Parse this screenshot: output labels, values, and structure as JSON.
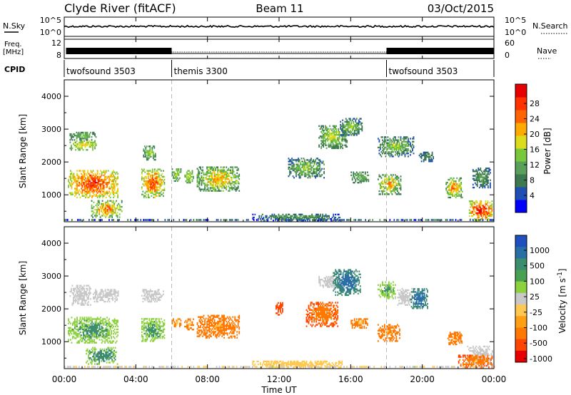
{
  "header": {
    "station": "Clyde River (fitACF)",
    "beam": "Beam 11",
    "date": "03/Oct/2015"
  },
  "summary_panels": {
    "nsky_label": "N.Sky",
    "nsearch_label": "N.Search",
    "nsky_ticks": [
      "10^5",
      "10^0"
    ],
    "nsearch_ticks": [
      "10^5",
      "10^0"
    ],
    "freq_label_1": "Freq.",
    "freq_label_2": "[MHz]",
    "freq_ticks": [
      "12",
      "8"
    ],
    "nave_label": "Nave",
    "nave_ticks": [
      "60",
      "0"
    ],
    "cpid_label": "CPID",
    "cpid_segments": [
      {
        "name": "twofsound 3503",
        "start_h": 0,
        "end_h": 6
      },
      {
        "name": "themis 3300",
        "start_h": 6,
        "end_h": 18
      },
      {
        "name": "twofsound 3503",
        "start_h": 18,
        "end_h": 24
      }
    ]
  },
  "x_axis": {
    "title": "Time UT",
    "ticks": [
      "00:00",
      "04:00",
      "08:00",
      "12:00",
      "16:00",
      "20:00",
      "00:00"
    ],
    "range_h": [
      0,
      24
    ]
  },
  "power_colorbar": {
    "label": "Power [dB]",
    "ticks": [
      "28",
      "24",
      "20",
      "16",
      "12",
      "8",
      "4"
    ],
    "colors": [
      "#0000ff",
      "#1e50b4",
      "#3c7850",
      "#5aa05a",
      "#78c83c",
      "#dcdc1e",
      "#ffaa00",
      "#ff6400",
      "#ff3200",
      "#e60000"
    ]
  },
  "velocity_colorbar": {
    "label": "Velocity [m s^-1]",
    "ticks": [
      "1000",
      "500",
      "100",
      "25",
      "-25",
      "-100",
      "-500",
      "-1000"
    ],
    "colors": [
      "#2050c0",
      "#2a6ea8",
      "#3c8c6e",
      "#4aa052",
      "#8cd23c",
      "#c8c8c8",
      "#ffc850",
      "#ffa014",
      "#ff7800",
      "#ff4600",
      "#e60000"
    ]
  },
  "chart_data": [
    {
      "type": "heatmap",
      "panel": "power",
      "ylabel": "Slant Range [km]",
      "yticks": [
        "1000",
        "2000",
        "3000",
        "4000"
      ],
      "ylim_km": [
        180,
        4500
      ],
      "xlim_h": [
        0,
        24
      ],
      "blobs": [
        {
          "t0": 0.2,
          "t1": 3.0,
          "r0": 900,
          "r1": 1750,
          "v0": 14,
          "v1": 30
        },
        {
          "t0": 0.3,
          "t1": 1.8,
          "r0": 2350,
          "r1": 2650,
          "v0": 12,
          "v1": 22
        },
        {
          "t0": 0.3,
          "t1": 1.8,
          "r0": 2650,
          "r1": 2900,
          "v0": 8,
          "v1": 16
        },
        {
          "t0": 1.5,
          "t1": 3.2,
          "r0": 300,
          "r1": 800,
          "v0": 10,
          "v1": 26
        },
        {
          "t0": 4.3,
          "t1": 5.6,
          "r0": 900,
          "r1": 1800,
          "v0": 12,
          "v1": 28
        },
        {
          "t0": 4.4,
          "t1": 5.1,
          "r0": 2050,
          "r1": 2500,
          "v0": 8,
          "v1": 18
        },
        {
          "t0": 6.0,
          "t1": 6.5,
          "r0": 1400,
          "r1": 1800,
          "v0": 10,
          "v1": 18
        },
        {
          "t0": 6.7,
          "t1": 7.2,
          "r0": 1350,
          "r1": 1750,
          "v0": 10,
          "v1": 20
        },
        {
          "t0": 7.4,
          "t1": 9.8,
          "r0": 1100,
          "r1": 1850,
          "v0": 8,
          "v1": 24
        },
        {
          "t0": 10.5,
          "t1": 15.5,
          "r0": 200,
          "r1": 420,
          "v0": 4,
          "v1": 14
        },
        {
          "t0": 12.5,
          "t1": 14.5,
          "r0": 1500,
          "r1": 2100,
          "v0": 6,
          "v1": 18
        },
        {
          "t0": 14.2,
          "t1": 15.8,
          "r0": 2400,
          "r1": 3100,
          "v0": 8,
          "v1": 20
        },
        {
          "t0": 15.4,
          "t1": 16.6,
          "r0": 2800,
          "r1": 3300,
          "v0": 6,
          "v1": 18
        },
        {
          "t0": 16.0,
          "t1": 17.0,
          "r0": 1350,
          "r1": 1700,
          "v0": 8,
          "v1": 16
        },
        {
          "t0": 17.5,
          "t1": 18.8,
          "r0": 1000,
          "r1": 1600,
          "v0": 8,
          "v1": 24
        },
        {
          "t0": 17.5,
          "t1": 19.5,
          "r0": 2150,
          "r1": 2750,
          "v0": 6,
          "v1": 18
        },
        {
          "t0": 19.8,
          "t1": 20.6,
          "r0": 2000,
          "r1": 2300,
          "v0": 6,
          "v1": 12
        },
        {
          "t0": 21.3,
          "t1": 22.2,
          "r0": 900,
          "r1": 1500,
          "v0": 10,
          "v1": 26
        },
        {
          "t0": 22.6,
          "t1": 23.9,
          "r0": 200,
          "r1": 800,
          "v0": 14,
          "v1": 32
        },
        {
          "t0": 22.8,
          "t1": 23.8,
          "r0": 1200,
          "r1": 1800,
          "v0": 6,
          "v1": 14
        }
      ]
    },
    {
      "type": "heatmap",
      "panel": "velocity",
      "ylabel": "Slant Range [km]",
      "yticks": [
        "1000",
        "2000",
        "3000",
        "4000"
      ],
      "ylim_km": [
        180,
        4500
      ],
      "xlim_h": [
        0,
        24
      ],
      "blobs": [
        {
          "t0": 0.2,
          "t1": 3.0,
          "r0": 950,
          "r1": 1750,
          "v0": 30,
          "v1": 150
        },
        {
          "t0": 0.3,
          "t1": 1.5,
          "r0": 2100,
          "r1": 2700,
          "v0": -20,
          "v1": 20
        },
        {
          "t0": 1.6,
          "t1": 3.0,
          "r0": 2200,
          "r1": 2600,
          "v0": -20,
          "v1": 20
        },
        {
          "t0": 1.2,
          "t1": 3.0,
          "r0": 300,
          "r1": 800,
          "v0": 30,
          "v1": 200
        },
        {
          "t0": 4.3,
          "t1": 5.6,
          "r0": 1000,
          "r1": 1700,
          "v0": 30,
          "v1": 150
        },
        {
          "t0": 4.3,
          "t1": 5.5,
          "r0": 2200,
          "r1": 2600,
          "v0": -20,
          "v1": 20
        },
        {
          "t0": 6.0,
          "t1": 6.5,
          "r0": 1400,
          "r1": 1700,
          "v0": -150,
          "v1": -60
        },
        {
          "t0": 6.7,
          "t1": 7.2,
          "r0": 1350,
          "r1": 1700,
          "v0": -200,
          "v1": -60
        },
        {
          "t0": 7.4,
          "t1": 9.8,
          "r0": 1100,
          "r1": 1800,
          "v0": -300,
          "v1": -70
        },
        {
          "t0": 10.5,
          "t1": 15.5,
          "r0": 200,
          "r1": 420,
          "v0": -100,
          "v1": -30
        },
        {
          "t0": 11.8,
          "t1": 12.2,
          "r0": 1800,
          "r1": 2200,
          "v0": -900,
          "v1": -600
        },
        {
          "t0": 13.5,
          "t1": 15.3,
          "r0": 1450,
          "r1": 2200,
          "v0": -700,
          "v1": -150
        },
        {
          "t0": 14.2,
          "t1": 15.5,
          "r0": 2600,
          "r1": 3000,
          "v0": -20,
          "v1": 20
        },
        {
          "t0": 15.0,
          "t1": 16.5,
          "r0": 2400,
          "r1": 3200,
          "v0": 200,
          "v1": 900
        },
        {
          "t0": 16.0,
          "t1": 16.9,
          "r0": 1400,
          "r1": 1700,
          "v0": -200,
          "v1": -60
        },
        {
          "t0": 17.5,
          "t1": 18.7,
          "r0": 1000,
          "r1": 1500,
          "v0": -300,
          "v1": -60
        },
        {
          "t0": 17.5,
          "t1": 18.5,
          "r0": 2300,
          "r1": 2800,
          "v0": 20,
          "v1": 150
        },
        {
          "t0": 18.6,
          "t1": 19.4,
          "r0": 2100,
          "r1": 2600,
          "v0": -20,
          "v1": 20
        },
        {
          "t0": 19.3,
          "t1": 20.3,
          "r0": 2000,
          "r1": 2600,
          "v0": 200,
          "v1": 900
        },
        {
          "t0": 21.4,
          "t1": 22.2,
          "r0": 900,
          "r1": 1300,
          "v0": -300,
          "v1": -60
        },
        {
          "t0": 22.5,
          "t1": 23.9,
          "r0": 250,
          "r1": 850,
          "v0": -20,
          "v1": 20
        },
        {
          "t0": 22.0,
          "t1": 23.9,
          "r0": 200,
          "r1": 600,
          "v0": -700,
          "v1": -60
        }
      ]
    }
  ]
}
